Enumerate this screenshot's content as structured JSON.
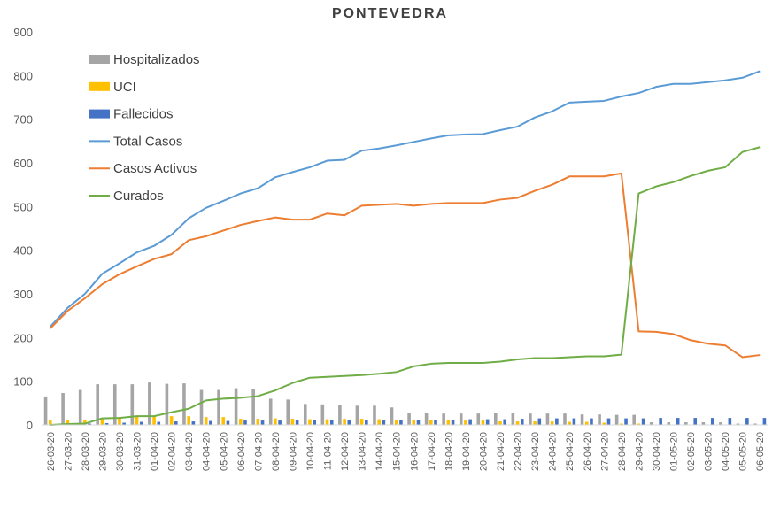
{
  "chart_data": {
    "type": "bar",
    "title": "PONTEVEDRA",
    "xlabel": "",
    "ylabel": "",
    "ylim": [
      0,
      900
    ],
    "yticks": [
      0,
      100,
      200,
      300,
      400,
      500,
      600,
      700,
      800,
      900
    ],
    "grid": false,
    "legend_position": "top-left",
    "categories": [
      "26-03-20",
      "27-03-20",
      "28-03-20",
      "29-03-20",
      "30-03-20",
      "31-03-20",
      "01-04-20",
      "02-04-20",
      "03-04-20",
      "04-04-20",
      "05-04-20",
      "06-04-20",
      "07-04-20",
      "08-04-20",
      "09-04-20",
      "10-04-20",
      "11-04-20",
      "12-04-20",
      "13-04-20",
      "14-04-20",
      "15-04-20",
      "16-04-20",
      "17-04-20",
      "18-04-20",
      "19-04-20",
      "20-04-20",
      "21-04-20",
      "22-04-20",
      "23-04-20",
      "24-04-20",
      "25-04-20",
      "26-04-20",
      "27-04-20",
      "28-04-20",
      "29-04-20",
      "30-04-20",
      "01-05-20",
      "02-05-20",
      "03-05-20",
      "04-05-20",
      "05-05-20",
      "06-05-20"
    ],
    "series": [
      {
        "name": "Hospitalizados",
        "kind": "bar",
        "color": "#a5a5a5",
        "values": [
          65,
          73,
          80,
          93,
          93,
          93,
          97,
          94,
          95,
          80,
          80,
          84,
          83,
          60,
          58,
          48,
          47,
          45,
          44,
          44,
          40,
          28,
          27,
          26,
          26,
          26,
          28,
          28,
          26,
          26,
          26,
          24,
          24,
          23,
          23,
          6,
          6,
          6,
          6,
          6,
          3,
          3
        ]
      },
      {
        "name": "UCI",
        "kind": "bar",
        "color": "#ffc000",
        "values": [
          10,
          12,
          12,
          15,
          18,
          19,
          20,
          20,
          20,
          18,
          18,
          14,
          14,
          15,
          14,
          13,
          13,
          14,
          14,
          13,
          12,
          12,
          11,
          10,
          10,
          10,
          8,
          8,
          8,
          8,
          7,
          7,
          5,
          3,
          3,
          1,
          1,
          1,
          1,
          1,
          0,
          0
        ]
      },
      {
        "name": "Fallecidos",
        "kind": "bar",
        "color": "#4472c4",
        "values": [
          2,
          2,
          3,
          4,
          5,
          7,
          7,
          8,
          8,
          9,
          9,
          10,
          10,
          10,
          11,
          12,
          12,
          12,
          12,
          12,
          12,
          12,
          12,
          12,
          13,
          13,
          13,
          14,
          15,
          15,
          15,
          15,
          15,
          15,
          15,
          16,
          16,
          16,
          16,
          16,
          16,
          16
        ]
      },
      {
        "name": "Total Casos",
        "kind": "line",
        "color": "#5b9bd5",
        "values": [
          225,
          268,
          300,
          346,
          370,
          395,
          410,
          435,
          473,
          497,
          513,
          530,
          542,
          567,
          579,
          590,
          605,
          607,
          628,
          633,
          640,
          648,
          656,
          663,
          665,
          666,
          675,
          683,
          704,
          718,
          738,
          740,
          742,
          752,
          760,
          774,
          781,
          781,
          785,
          789,
          795,
          810
        ]
      },
      {
        "name": "Casos Activos",
        "kind": "line",
        "color": "#ed7d31",
        "values": [
          221,
          261,
          290,
          322,
          345,
          363,
          380,
          391,
          423,
          432,
          445,
          458,
          467,
          475,
          470,
          470,
          484,
          480,
          502,
          504,
          506,
          502,
          506,
          508,
          508,
          508,
          516,
          520,
          536,
          550,
          569,
          569,
          569,
          576,
          214,
          213,
          208,
          194,
          186,
          182,
          155,
          160
        ]
      },
      {
        "name": "Curados",
        "kind": "line",
        "color": "#70ad47",
        "values": [
          0,
          2,
          3,
          15,
          16,
          20,
          20,
          29,
          37,
          56,
          60,
          62,
          66,
          79,
          96,
          108,
          110,
          112,
          114,
          117,
          121,
          134,
          140,
          142,
          142,
          142,
          145,
          150,
          153,
          153,
          155,
          157,
          157,
          161,
          530,
          546,
          556,
          570,
          582,
          590,
          625,
          636
        ]
      }
    ]
  }
}
